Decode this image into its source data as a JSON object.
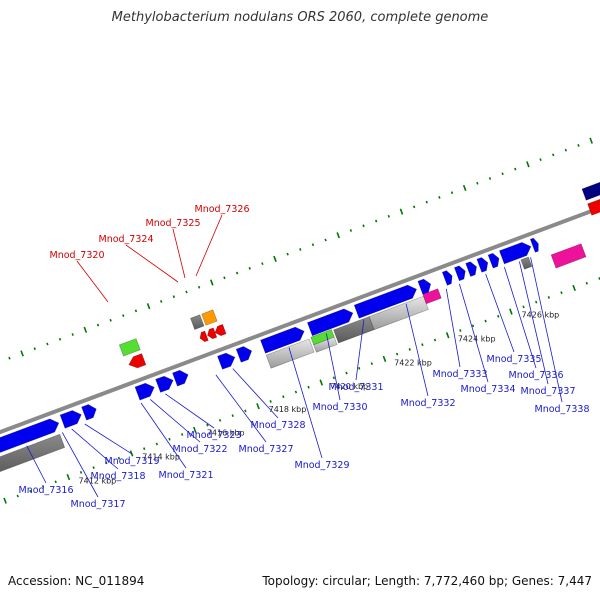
{
  "title": "Methylobacterium nodulans ORS 2060, complete genome",
  "footer": {
    "accession": "Accession: NC_011894",
    "info": "Topology: circular; Length: 7,772,460 bp; Genes: 7,447"
  },
  "colors": {
    "forward_gene": "#0000ee",
    "reverse_gene": "#ee0000",
    "forward_label": "#1a1acc",
    "reverse_label": "#d40000",
    "backbone": "#8a8a8a",
    "tick": "#007700",
    "highlight_orange": "#ff9900",
    "highlight_pink": "#ee1199",
    "highlight_green": "#55dd33"
  },
  "scale_labels": [
    "7412 kbp",
    "7414 kbp",
    "7416 kbp",
    "7418 kbp",
    "7420 kbp",
    "7422 kbp",
    "7424 kbp",
    "7426 kbp"
  ],
  "forward_gene_labels": [
    "Mnod_7316",
    "Mnod_7317",
    "Mnod_7318",
    "Mnod_7319",
    "Mnod_7321",
    "Mnod_7322",
    "Mnod_7323",
    "Mnod_7327",
    "Mnod_7328",
    "Mnod_7329",
    "Mnod_7330",
    "Mnod_7331",
    "Mnod_7332",
    "Mnod_7333",
    "Mnod_7334",
    "Mnod_7335",
    "Mnod_7336",
    "Mnod_7337",
    "Mnod_7338"
  ],
  "reverse_gene_labels": [
    "Mnod_7320",
    "Mnod_7324",
    "Mnod_7325",
    "Mnod_7326"
  ]
}
